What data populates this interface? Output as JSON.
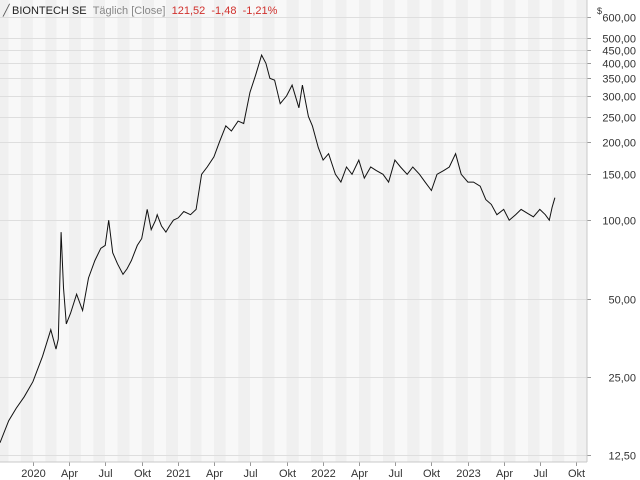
{
  "header": {
    "name": "BIONTECH SE",
    "period": "Täglich",
    "mode": "[Close]",
    "last": "121,52",
    "change_abs": "-1,48",
    "change_pct": "-1,21%"
  },
  "colors": {
    "band_dark": "#f0f0f0",
    "band_light": "#f8f8f8",
    "grid": "#dedede",
    "line": "#111111",
    "negative": "#d0312d"
  },
  "chart_data": {
    "type": "line",
    "title": "BIONTECH SE Täglich [Close]",
    "y_unit": "$",
    "y_scale": "log",
    "ylim": [
      11.8,
      700
    ],
    "x_range": [
      "2019-10-10",
      "2023-10-28"
    ],
    "grid": true,
    "y_ticks": [
      {
        "value": 600,
        "label": "600,00"
      },
      {
        "value": 500,
        "label": "500,00"
      },
      {
        "value": 450,
        "label": "450,00"
      },
      {
        "value": 400,
        "label": "400,00"
      },
      {
        "value": 350,
        "label": "350,00"
      },
      {
        "value": 300,
        "label": "300,00"
      },
      {
        "value": 250,
        "label": "250,00"
      },
      {
        "value": 200,
        "label": "200,00"
      },
      {
        "value": 150,
        "label": "150,00"
      },
      {
        "value": 100,
        "label": "100,00"
      },
      {
        "value": 50,
        "label": "50,00"
      },
      {
        "value": 25,
        "label": "25,00"
      },
      {
        "value": 12.5,
        "label": "12,50"
      }
    ],
    "x_ticks": [
      {
        "date": "2020-01-01",
        "label": "2020"
      },
      {
        "date": "2020-04-01",
        "label": "Apr"
      },
      {
        "date": "2020-07-01",
        "label": "Jul"
      },
      {
        "date": "2020-10-01",
        "label": "Okt"
      },
      {
        "date": "2021-01-01",
        "label": "2021"
      },
      {
        "date": "2021-04-01",
        "label": "Apr"
      },
      {
        "date": "2021-07-01",
        "label": "Jul"
      },
      {
        "date": "2021-10-01",
        "label": "Okt"
      },
      {
        "date": "2022-01-01",
        "label": "2022"
      },
      {
        "date": "2022-04-01",
        "label": "Apr"
      },
      {
        "date": "2022-07-01",
        "label": "Jul"
      },
      {
        "date": "2022-10-01",
        "label": "Okt"
      },
      {
        "date": "2023-01-01",
        "label": "2023"
      },
      {
        "date": "2023-04-01",
        "label": "Apr"
      },
      {
        "date": "2023-07-01",
        "label": "Jul"
      },
      {
        "date": "2023-10-01",
        "label": "Okt"
      }
    ],
    "series": [
      {
        "x": [
          "2019-10-10",
          "2019-11-01",
          "2019-11-20",
          "2019-12-10",
          "2020-01-01",
          "2020-01-25",
          "2020-02-15",
          "2020-02-28",
          "2020-03-05",
          "2020-03-12",
          "2020-03-18",
          "2020-03-25",
          "2020-04-05",
          "2020-04-20",
          "2020-05-05",
          "2020-05-20",
          "2020-06-05",
          "2020-06-20",
          "2020-07-01",
          "2020-07-10",
          "2020-07-20",
          "2020-08-01",
          "2020-08-15",
          "2020-08-25",
          "2020-09-05",
          "2020-09-20",
          "2020-10-01",
          "2020-10-15",
          "2020-10-25",
          "2020-11-05",
          "2020-11-09",
          "2020-11-20",
          "2020-12-01",
          "2020-12-10",
          "2020-12-20",
          "2021-01-01",
          "2021-01-15",
          "2021-02-01",
          "2021-02-15",
          "2021-03-01",
          "2021-03-15",
          "2021-04-01",
          "2021-04-15",
          "2021-05-01",
          "2021-05-15",
          "2021-06-01",
          "2021-06-15",
          "2021-07-01",
          "2021-07-15",
          "2021-07-30",
          "2021-08-10",
          "2021-08-20",
          "2021-09-01",
          "2021-09-15",
          "2021-10-01",
          "2021-10-15",
          "2021-11-01",
          "2021-11-10",
          "2021-11-25",
          "2021-12-05",
          "2021-12-20",
          "2022-01-01",
          "2022-01-15",
          "2022-02-01",
          "2022-02-15",
          "2022-03-01",
          "2022-03-15",
          "2022-04-01",
          "2022-04-15",
          "2022-05-01",
          "2022-05-15",
          "2022-06-01",
          "2022-06-15",
          "2022-07-01",
          "2022-07-15",
          "2022-08-01",
          "2022-08-15",
          "2022-09-01",
          "2022-09-15",
          "2022-10-01",
          "2022-10-15",
          "2022-11-01",
          "2022-11-15",
          "2022-12-01",
          "2022-12-15",
          "2023-01-01",
          "2023-01-15",
          "2023-02-01",
          "2023-02-15",
          "2023-03-01",
          "2023-03-15",
          "2023-04-01",
          "2023-04-15",
          "2023-05-01",
          "2023-05-15",
          "2023-06-01",
          "2023-06-15",
          "2023-07-01",
          "2023-07-15",
          "2023-07-25",
          "2023-08-01",
          "2023-08-08"
        ],
        "values": [
          14,
          17,
          19,
          21,
          24,
          30,
          38,
          32,
          35,
          90,
          55,
          40,
          44,
          52,
          45,
          60,
          70,
          78,
          80,
          100,
          75,
          68,
          62,
          65,
          70,
          80,
          85,
          110,
          92,
          100,
          105,
          95,
          90,
          95,
          100,
          102,
          108,
          105,
          110,
          150,
          160,
          175,
          200,
          230,
          220,
          240,
          235,
          310,
          360,
          430,
          400,
          350,
          345,
          280,
          300,
          330,
          270,
          330,
          250,
          230,
          190,
          170,
          180,
          150,
          140,
          160,
          150,
          170,
          145,
          160,
          155,
          150,
          140,
          170,
          160,
          150,
          160,
          150,
          140,
          130,
          150,
          155,
          160,
          180,
          150,
          140,
          140,
          135,
          120,
          115,
          105,
          110,
          100,
          105,
          110,
          106,
          103,
          110,
          105,
          100,
          112,
          122
        ]
      }
    ]
  }
}
